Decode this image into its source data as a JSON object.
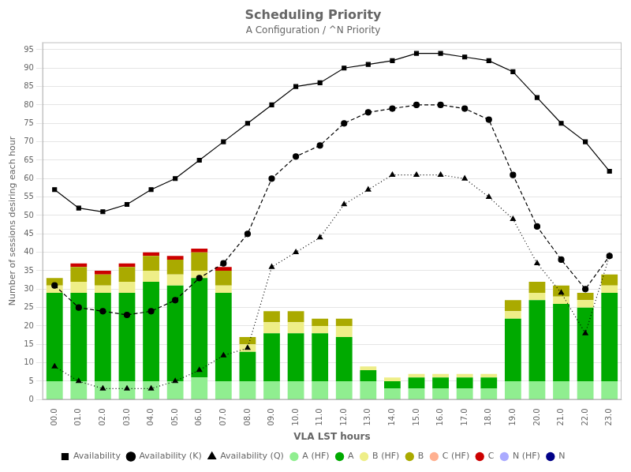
{
  "chart_data": {
    "type": "bar",
    "stacked": true,
    "title": "Scheduling Priority",
    "subtitle": "A Configuration / ^N Priority",
    "xlabel": "VLA LST hours",
    "ylabel": "Number of sessions desiring each hour",
    "categories": [
      "00.0",
      "01.0",
      "02.0",
      "03.0",
      "04.0",
      "05.0",
      "06.0",
      "07.0",
      "08.0",
      "09.0",
      "10.0",
      "11.0",
      "12.0",
      "13.0",
      "14.0",
      "15.0",
      "16.0",
      "17.0",
      "18.0",
      "19.0",
      "20.0",
      "21.0",
      "22.0",
      "23.0"
    ],
    "series": [
      {
        "name": "A (HF)",
        "type": "bar",
        "color": "#90EE90",
        "values": [
          5,
          5,
          5,
          5,
          5,
          5,
          6,
          5,
          5,
          5,
          5,
          5,
          5,
          5,
          3,
          3,
          3,
          3,
          3,
          5,
          5,
          5,
          5,
          5
        ]
      },
      {
        "name": "A",
        "type": "bar",
        "color": "#00AA00",
        "values": [
          24,
          24,
          24,
          24,
          27,
          26,
          27,
          24,
          8,
          13,
          13,
          13,
          12,
          3,
          2,
          3,
          3,
          3,
          3,
          17,
          22,
          21,
          20,
          24
        ]
      },
      {
        "name": "B (HF)",
        "type": "bar",
        "color": "#EEEE88",
        "values": [
          2,
          3,
          2,
          3,
          3,
          3,
          2,
          2,
          2,
          3,
          3,
          2,
          3,
          1,
          1,
          1,
          1,
          1,
          1,
          2,
          2,
          2,
          2,
          2
        ]
      },
      {
        "name": "B",
        "type": "bar",
        "color": "#AAAA00",
        "values": [
          2,
          4,
          3,
          4,
          4,
          4,
          5,
          4,
          2,
          3,
          3,
          2,
          2,
          0,
          0,
          0,
          0,
          0,
          0,
          3,
          3,
          3,
          2,
          3
        ]
      },
      {
        "name": "C (HF)",
        "type": "bar",
        "color": "#FFB090",
        "values": [
          0,
          0,
          0,
          0,
          0,
          0,
          0,
          0,
          0,
          0,
          0,
          0,
          0,
          0,
          0,
          0,
          0,
          0,
          0,
          0,
          0,
          0,
          0,
          0
        ]
      },
      {
        "name": "C",
        "type": "bar",
        "color": "#CC0000",
        "values": [
          0,
          1,
          1,
          1,
          1,
          1,
          1,
          1,
          0,
          0,
          0,
          0,
          0,
          0,
          0,
          0,
          0,
          0,
          0,
          0,
          0,
          0,
          0,
          0
        ]
      },
      {
        "name": "N (HF)",
        "type": "bar",
        "color": "#AAAAFF",
        "values": [
          0,
          0,
          0,
          0,
          0,
          0,
          0,
          0,
          0,
          0,
          0,
          0,
          0,
          0,
          0,
          0,
          0,
          0,
          0,
          0,
          0,
          0,
          0,
          0
        ]
      },
      {
        "name": "N",
        "type": "bar",
        "color": "#000088",
        "values": [
          0,
          0,
          0,
          0,
          0,
          0,
          0,
          0,
          0,
          0,
          0,
          0,
          0,
          0,
          0,
          0,
          0,
          0,
          0,
          0,
          0,
          0,
          0,
          0
        ]
      },
      {
        "name": "Availability",
        "type": "line",
        "color": "#000000",
        "marker": "square",
        "line_style": "solid",
        "values": [
          57,
          52,
          51,
          53,
          57,
          60,
          65,
          70,
          75,
          80,
          85,
          86,
          90,
          91,
          92,
          94,
          94,
          93,
          92,
          89,
          82,
          75,
          70,
          62
        ]
      },
      {
        "name": "Availability (K)",
        "type": "line",
        "color": "#000000",
        "marker": "circle",
        "line_style": "dashed",
        "values": [
          31,
          25,
          24,
          23,
          24,
          27,
          33,
          37,
          45,
          60,
          66,
          69,
          75,
          78,
          79,
          80,
          80,
          79,
          76,
          61,
          47,
          38,
          30,
          39
        ]
      },
      {
        "name": "Availability (Q)",
        "type": "line",
        "color": "#000000",
        "marker": "triangle",
        "line_style": "dotted",
        "values": [
          9,
          5,
          3,
          3,
          3,
          5,
          8,
          12,
          14,
          36,
          40,
          44,
          53,
          57,
          61,
          61,
          61,
          60,
          55,
          49,
          37,
          29,
          18,
          39
        ]
      }
    ],
    "ylim": [
      0,
      97
    ],
    "yticks": [
      0,
      5,
      10,
      15,
      20,
      25,
      30,
      35,
      40,
      45,
      50,
      55,
      60,
      65,
      70,
      75,
      80,
      85,
      90,
      95
    ],
    "grid": true,
    "legend": "bottom"
  }
}
